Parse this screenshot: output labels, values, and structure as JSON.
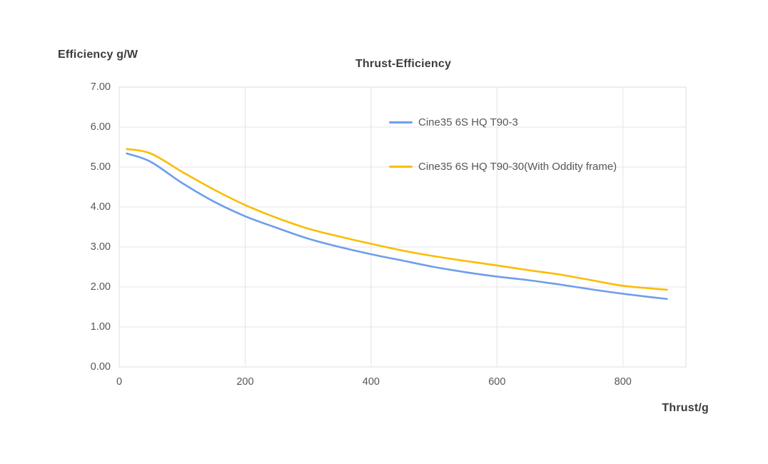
{
  "chart": {
    "title": "Thrust-Efficiency",
    "y_axis_title": "Efficiency g/W",
    "x_axis_title": "Thrust/g"
  },
  "colors": {
    "series_blue": "#6D9EEB",
    "series_yellow": "#FBBC04",
    "gridline": "#E4E4E4",
    "plot_border": "#DCDCDC",
    "tick_text": "#57575A",
    "title_text": "#3C3C3E",
    "background": "#FFFFFF"
  },
  "chart_data": {
    "type": "line",
    "title": "Thrust-Efficiency",
    "xlabel": "Thrust/g",
    "ylabel": "Efficiency g/W",
    "xlim": [
      0,
      900
    ],
    "ylim": [
      0,
      7
    ],
    "xticks": [
      0,
      200,
      400,
      600,
      800
    ],
    "xtick_labels": [
      "0",
      "200",
      "400",
      "600",
      "800"
    ],
    "yticks": [
      0,
      1,
      2,
      3,
      4,
      5,
      6,
      7
    ],
    "ytick_labels": [
      "0.00",
      "1.00",
      "2.00",
      "3.00",
      "4.00",
      "5.00",
      "6.00",
      "7.00"
    ],
    "grid": true,
    "legend_position": "inside-top-center",
    "series": [
      {
        "name": "Cine35 6S HQ T90-3",
        "color": "#6D9EEB",
        "points": [
          [
            12,
            5.34
          ],
          [
            50,
            5.13
          ],
          [
            100,
            4.6
          ],
          [
            150,
            4.14
          ],
          [
            200,
            3.77
          ],
          [
            250,
            3.48
          ],
          [
            300,
            3.21
          ],
          [
            350,
            3.0
          ],
          [
            400,
            2.82
          ],
          [
            450,
            2.66
          ],
          [
            500,
            2.5
          ],
          [
            550,
            2.37
          ],
          [
            600,
            2.26
          ],
          [
            650,
            2.17
          ],
          [
            700,
            2.06
          ],
          [
            750,
            1.94
          ],
          [
            800,
            1.83
          ],
          [
            870,
            1.7
          ]
        ]
      },
      {
        "name": "Cine35 6S HQ T90-30(With Oddity frame)",
        "color": "#FBBC04",
        "points": [
          [
            12,
            5.45
          ],
          [
            50,
            5.34
          ],
          [
            100,
            4.88
          ],
          [
            150,
            4.44
          ],
          [
            200,
            4.05
          ],
          [
            250,
            3.73
          ],
          [
            300,
            3.46
          ],
          [
            350,
            3.26
          ],
          [
            400,
            3.08
          ],
          [
            450,
            2.91
          ],
          [
            500,
            2.77
          ],
          [
            550,
            2.65
          ],
          [
            600,
            2.54
          ],
          [
            650,
            2.42
          ],
          [
            700,
            2.31
          ],
          [
            750,
            2.17
          ],
          [
            800,
            2.03
          ],
          [
            870,
            1.93
          ]
        ]
      }
    ]
  }
}
